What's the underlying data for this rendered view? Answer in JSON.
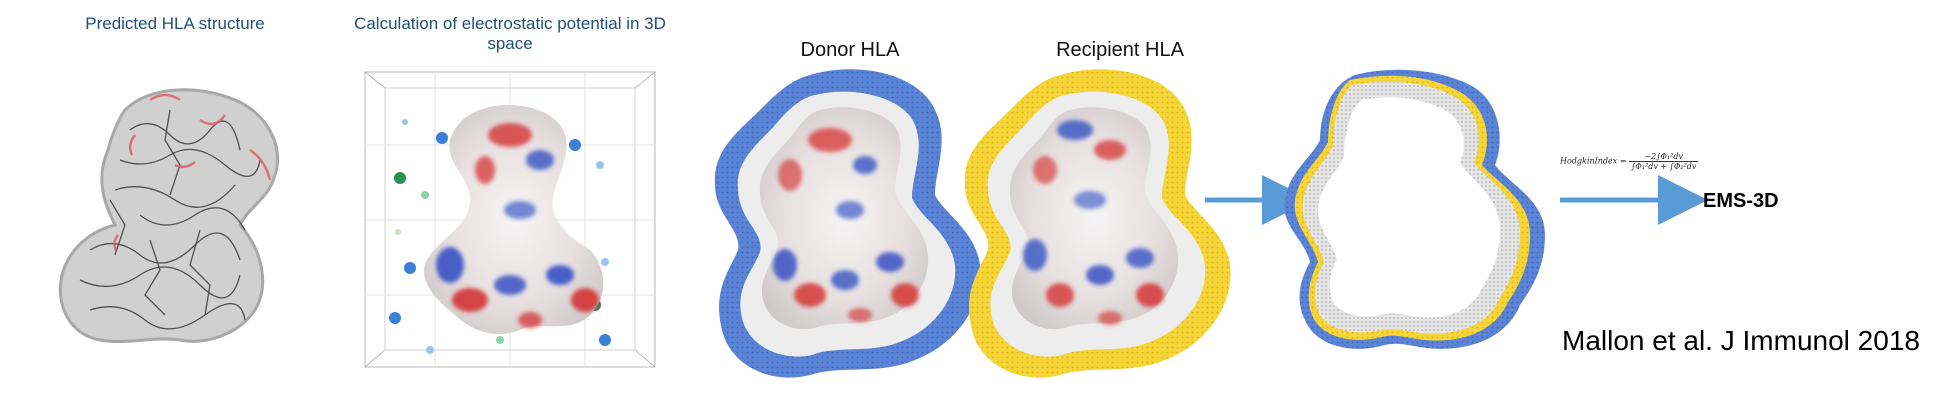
{
  "panels": {
    "predicted": {
      "title": "Predicted HLA structure"
    },
    "calculation": {
      "title": "Calculation of electrostatic potential in 3D space"
    },
    "donor": {
      "title": "Donor HLA"
    },
    "recipient": {
      "title": "Recipient HLA"
    }
  },
  "formula": {
    "lhs": "HodgkinIndex =",
    "numerator": "−2∫Φ₁²dv",
    "denominator": "∫Φ₁²dv + ∫Φ₂²dv"
  },
  "output_label": "EMS-3D",
  "citation": "Mallon et al. J Immunol 2018",
  "colors": {
    "donor_halo": "#5b84d6",
    "recipient_halo": "#f5d53a",
    "arrow": "#5b9bd5",
    "positive": "#1f3fbf",
    "negative": "#d42a2a",
    "neutral": "#f2f2f2",
    "title_text": "#1f4e79"
  }
}
